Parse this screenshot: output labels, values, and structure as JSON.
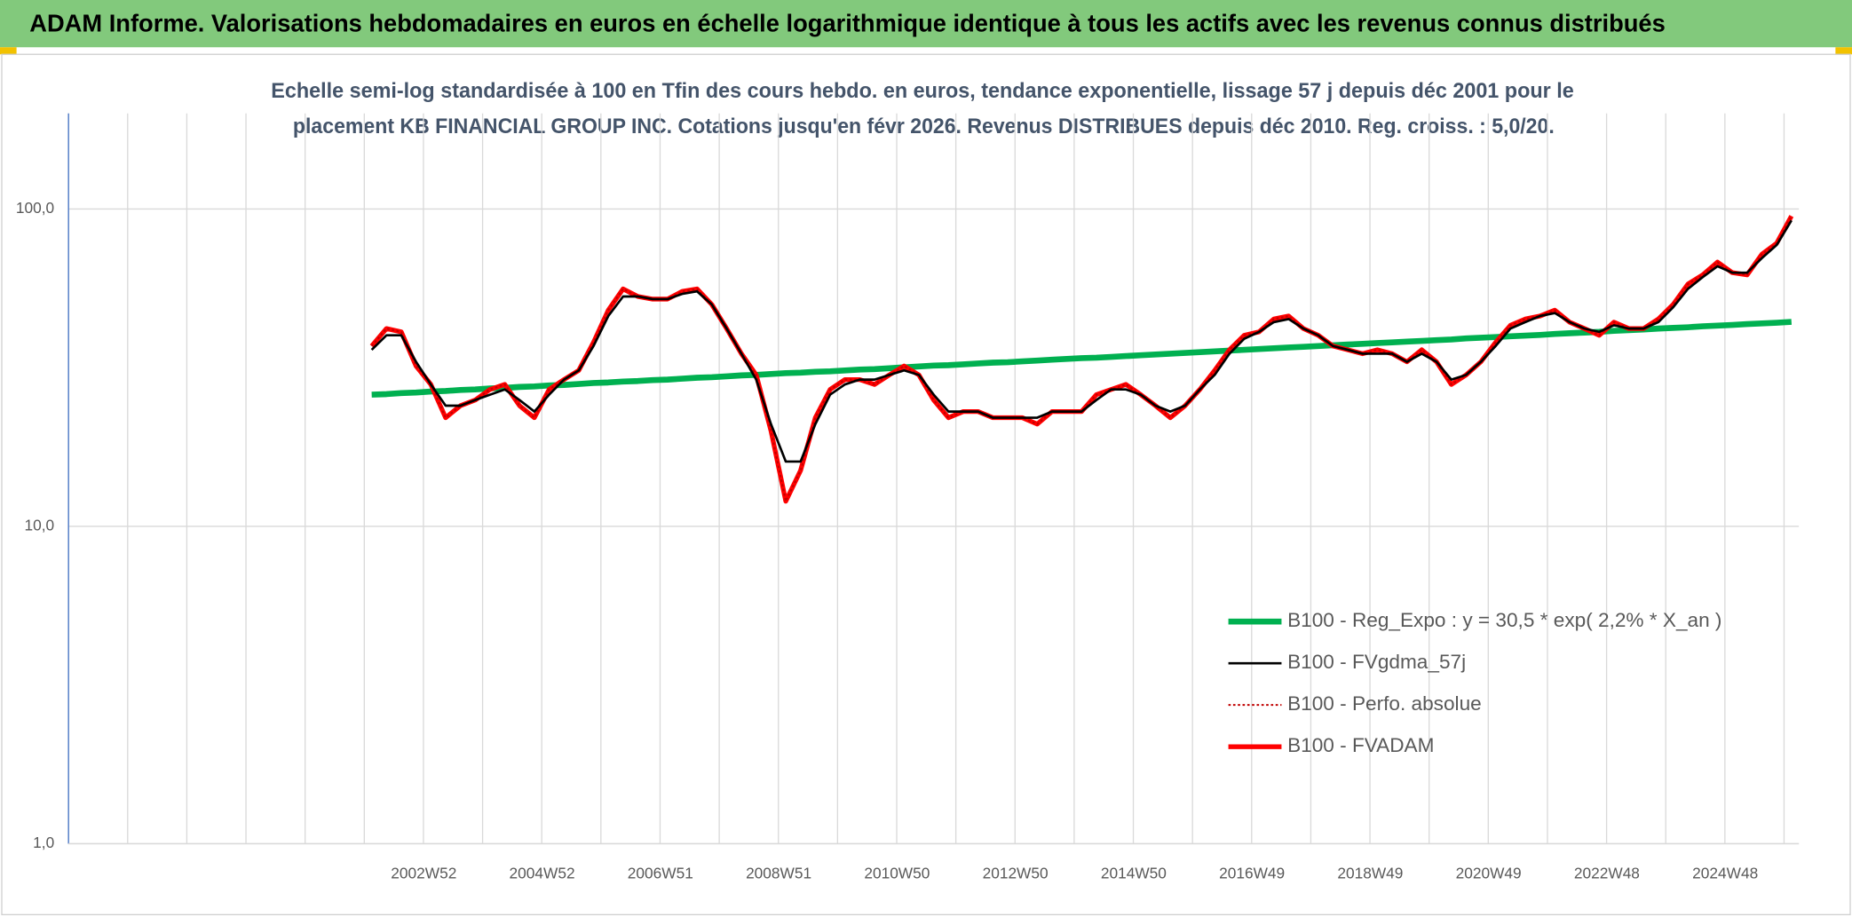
{
  "header": {
    "title": "ADAM Informe. Valorisations hebdomadaires en euros en échelle logarithmique identique à tous les actifs avec les revenus connus distribués"
  },
  "chart_data": {
    "type": "line",
    "title": [
      "Echelle semi-log standardisée à 100 en Tfin des cours hebdo. en euros, tendance exponentielle, lissage 57 j depuis déc 2001 pour le",
      "placement KB FINANCIAL GROUP INC. Cotations jusqu'en févr 2026. Revenus DISTRIBUES depuis déc 2010. Reg. croiss. : 5,0/20."
    ],
    "log_y": true,
    "grid": true,
    "legend": "lower right",
    "ylim": [
      1,
      200
    ],
    "yticks": [
      {
        "value": 1,
        "label": "1,0"
      },
      {
        "value": 10,
        "label": "10,0"
      },
      {
        "value": 100,
        "label": "100,0"
      }
    ],
    "categories": [
      null,
      null,
      null,
      null,
      null,
      null,
      null,
      null,
      null,
      null,
      null,
      null,
      null,
      null,
      null,
      null,
      null,
      null,
      null,
      null,
      null,
      null,
      null,
      null,
      "2002W52",
      null,
      null,
      null,
      null,
      null,
      null,
      null,
      "2004W52",
      null,
      null,
      null,
      null,
      null,
      null,
      null,
      "2006W51",
      null,
      null,
      null,
      null,
      null,
      null,
      null,
      "2008W51",
      null,
      null,
      null,
      null,
      null,
      null,
      null,
      "2010W50",
      null,
      null,
      null,
      null,
      null,
      null,
      null,
      "2012W50",
      null,
      null,
      null,
      null,
      null,
      null,
      null,
      "2014W50",
      null,
      null,
      null,
      null,
      null,
      null,
      null,
      "2016W49",
      null,
      null,
      null,
      null,
      null,
      null,
      null,
      "2018W49",
      null,
      null,
      null,
      null,
      null,
      null,
      null,
      "2020W49",
      null,
      null,
      null,
      null,
      null,
      null,
      null,
      "2022W48",
      null,
      null,
      null,
      null,
      null,
      null,
      null,
      "2024W48",
      null,
      null,
      null,
      null
    ],
    "series": [
      {
        "name": "B100 - Reg_Expo : y = 30,5 * exp( 2,2% *  X_an )",
        "color": "#00b050",
        "width": 5,
        "dash": null,
        "values": [
          null,
          null,
          null,
          null,
          null,
          null,
          null,
          null,
          null,
          null,
          null,
          null,
          null,
          null,
          null,
          null,
          null,
          null,
          null,
          null,
          26.0,
          26.1,
          26.3,
          26.4,
          26.6,
          26.7,
          26.9,
          27.0,
          27.2,
          27.3,
          27.5,
          27.6,
          27.8,
          27.9,
          28.1,
          28.3,
          28.4,
          28.6,
          28.7,
          28.9,
          29.0,
          29.2,
          29.4,
          29.5,
          29.7,
          29.9,
          30.0,
          30.2,
          30.4,
          30.5,
          30.7,
          30.8,
          31.0,
          31.2,
          31.3,
          31.5,
          31.7,
          31.9,
          32.1,
          32.2,
          32.4,
          32.6,
          32.8,
          32.9,
          33.1,
          33.3,
          33.5,
          33.7,
          33.9,
          34.0,
          34.2,
          34.4,
          34.6,
          34.8,
          35.0,
          35.2,
          35.4,
          35.6,
          35.8,
          36.0,
          36.2,
          36.4,
          36.6,
          36.8,
          37.0,
          37.2,
          37.4,
          37.6,
          37.8,
          38.0,
          38.2,
          38.4,
          38.6,
          38.8,
          39.1,
          39.3,
          39.5,
          39.7,
          39.9,
          40.1,
          40.4,
          40.6,
          40.8,
          41.0,
          41.3,
          41.5,
          41.7,
          42.0,
          42.2,
          42.4,
          42.7,
          42.9,
          43.1,
          43.4,
          43.6,
          43.8,
          44.1
        ]
      },
      {
        "name": "B100 - FVgdma_57j",
        "color": "#000000",
        "width": 2,
        "dash": null,
        "values": [
          null,
          null,
          null,
          null,
          null,
          null,
          null,
          null,
          null,
          null,
          null,
          null,
          null,
          null,
          null,
          null,
          null,
          null,
          null,
          null,
          36,
          40,
          40,
          33,
          28,
          24,
          24,
          25,
          26,
          27,
          25,
          23,
          26,
          29,
          31,
          37,
          46,
          53,
          53,
          52,
          52,
          54,
          55,
          50,
          42,
          35,
          29,
          21,
          16,
          16,
          21,
          26,
          28,
          29,
          29,
          30,
          31,
          30,
          26,
          23,
          23,
          23,
          22,
          22,
          22,
          22,
          23,
          23,
          23,
          25,
          27,
          27,
          26,
          24,
          23,
          24,
          27,
          30,
          35,
          39,
          41,
          44,
          45,
          42,
          40,
          37,
          36,
          35,
          35,
          35,
          33,
          35,
          33,
          29,
          30,
          33,
          37,
          42,
          44,
          46,
          47,
          44,
          42,
          41,
          43,
          42,
          42,
          44,
          49,
          56,
          61,
          66,
          63,
          63,
          70,
          77,
          92
        ]
      },
      {
        "name": "B100 - Perfo. absolue",
        "color": "#c00000",
        "width": 1.5,
        "dash": "2 2",
        "values": [
          null,
          null,
          null,
          null,
          null,
          null,
          null,
          null,
          null,
          null,
          null,
          null,
          null,
          null,
          null,
          null,
          null,
          null,
          null,
          null,
          37,
          42,
          41,
          32,
          28,
          22,
          24,
          25,
          27,
          28,
          24,
          22,
          27,
          29,
          31,
          38,
          48,
          56,
          53,
          52,
          52,
          55,
          56,
          50,
          42,
          35,
          30,
          20,
          12,
          15,
          22,
          27,
          29,
          29,
          28,
          30,
          32,
          30,
          25,
          22,
          23,
          23,
          22,
          22,
          22,
          21,
          23,
          23,
          23,
          26,
          27,
          28,
          26,
          24,
          22,
          24,
          27,
          31,
          36,
          40,
          41,
          45,
          46,
          42,
          40,
          37,
          36,
          35,
          36,
          35,
          33,
          36,
          33,
          28,
          30,
          33,
          38,
          43,
          45,
          46,
          48,
          44,
          42,
          40,
          44,
          42,
          42,
          45,
          50,
          58,
          62,
          68,
          63,
          62,
          72,
          78,
          95
        ]
      },
      {
        "name": "B100 - FVADAM",
        "color": "#ff0000",
        "width": 4,
        "dash": null,
        "values": [
          null,
          null,
          null,
          null,
          null,
          null,
          null,
          null,
          null,
          null,
          null,
          null,
          null,
          null,
          null,
          null,
          null,
          null,
          null,
          null,
          37,
          42,
          41,
          32,
          28,
          22,
          24,
          25,
          27,
          28,
          24,
          22,
          27,
          29,
          31,
          38,
          48,
          56,
          53,
          52,
          52,
          55,
          56,
          50,
          42,
          35,
          30,
          20,
          12,
          15,
          22,
          27,
          29,
          29,
          28,
          30,
          32,
          30,
          25,
          22,
          23,
          23,
          22,
          22,
          22,
          21,
          23,
          23,
          23,
          26,
          27,
          28,
          26,
          24,
          22,
          24,
          27,
          31,
          36,
          40,
          41,
          45,
          46,
          42,
          40,
          37,
          36,
          35,
          36,
          35,
          33,
          36,
          33,
          28,
          30,
          33,
          38,
          43,
          45,
          46,
          48,
          44,
          42,
          40,
          44,
          42,
          42,
          45,
          50,
          58,
          62,
          68,
          63,
          62,
          72,
          78,
          95
        ]
      }
    ]
  }
}
